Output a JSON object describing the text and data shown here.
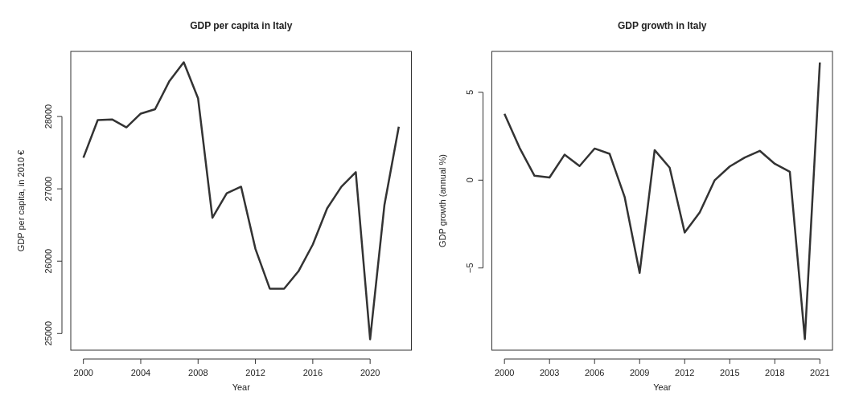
{
  "chart_data": [
    {
      "type": "line",
      "title": "GDP per capita in Italy",
      "xlabel": "Year",
      "ylabel": "GDP per capita, in 2010 €",
      "x": [
        2000,
        2001,
        2002,
        2003,
        2004,
        2005,
        2006,
        2007,
        2008,
        2009,
        2010,
        2011,
        2012,
        2013,
        2014,
        2015,
        2016,
        2017,
        2018,
        2019,
        2020,
        2021,
        2022
      ],
      "series": [
        {
          "color": "#333333",
          "values": [
            27430,
            27950,
            27960,
            27850,
            28040,
            28100,
            28490,
            28750,
            28250,
            26600,
            26940,
            27030,
            26170,
            25620,
            25620,
            25860,
            26230,
            26730,
            27030,
            27230,
            24920,
            26780,
            27860
          ]
        }
      ],
      "xlim": [
        1999.12,
        2022.88
      ],
      "ylim": [
        24770,
        28900
      ],
      "xticks": [
        2000,
        2004,
        2008,
        2012,
        2016,
        2020
      ],
      "yticks": [
        25000,
        26000,
        27000,
        28000
      ],
      "grid": false,
      "marker": "none",
      "line_style": "solid"
    },
    {
      "type": "line",
      "title": "GDP growth in Italy",
      "xlabel": "Year",
      "ylabel": "GDP growth (annual %)",
      "x": [
        2000,
        2001,
        2002,
        2003,
        2004,
        2005,
        2006,
        2007,
        2008,
        2009,
        2010,
        2011,
        2012,
        2013,
        2014,
        2015,
        2016,
        2017,
        2018,
        2019,
        2020,
        2021
      ],
      "series": [
        {
          "color": "#333333",
          "values": [
            3.78,
            1.85,
            0.25,
            0.15,
            1.45,
            0.8,
            1.8,
            1.5,
            -0.95,
            -5.28,
            1.71,
            0.71,
            -2.98,
            -1.84,
            0.0,
            0.78,
            1.29,
            1.67,
            0.93,
            0.48,
            -9.05,
            6.7
          ]
        }
      ],
      "xlim": [
        1999.16,
        2021.84
      ],
      "ylim": [
        -9.68,
        7.33
      ],
      "xticks": [
        2000,
        2003,
        2006,
        2009,
        2012,
        2015,
        2018,
        2021
      ],
      "yticks": [
        {
          "value": -5,
          "label": "−5"
        },
        0,
        5
      ],
      "grid": false,
      "marker": "none",
      "line_style": "solid"
    }
  ]
}
